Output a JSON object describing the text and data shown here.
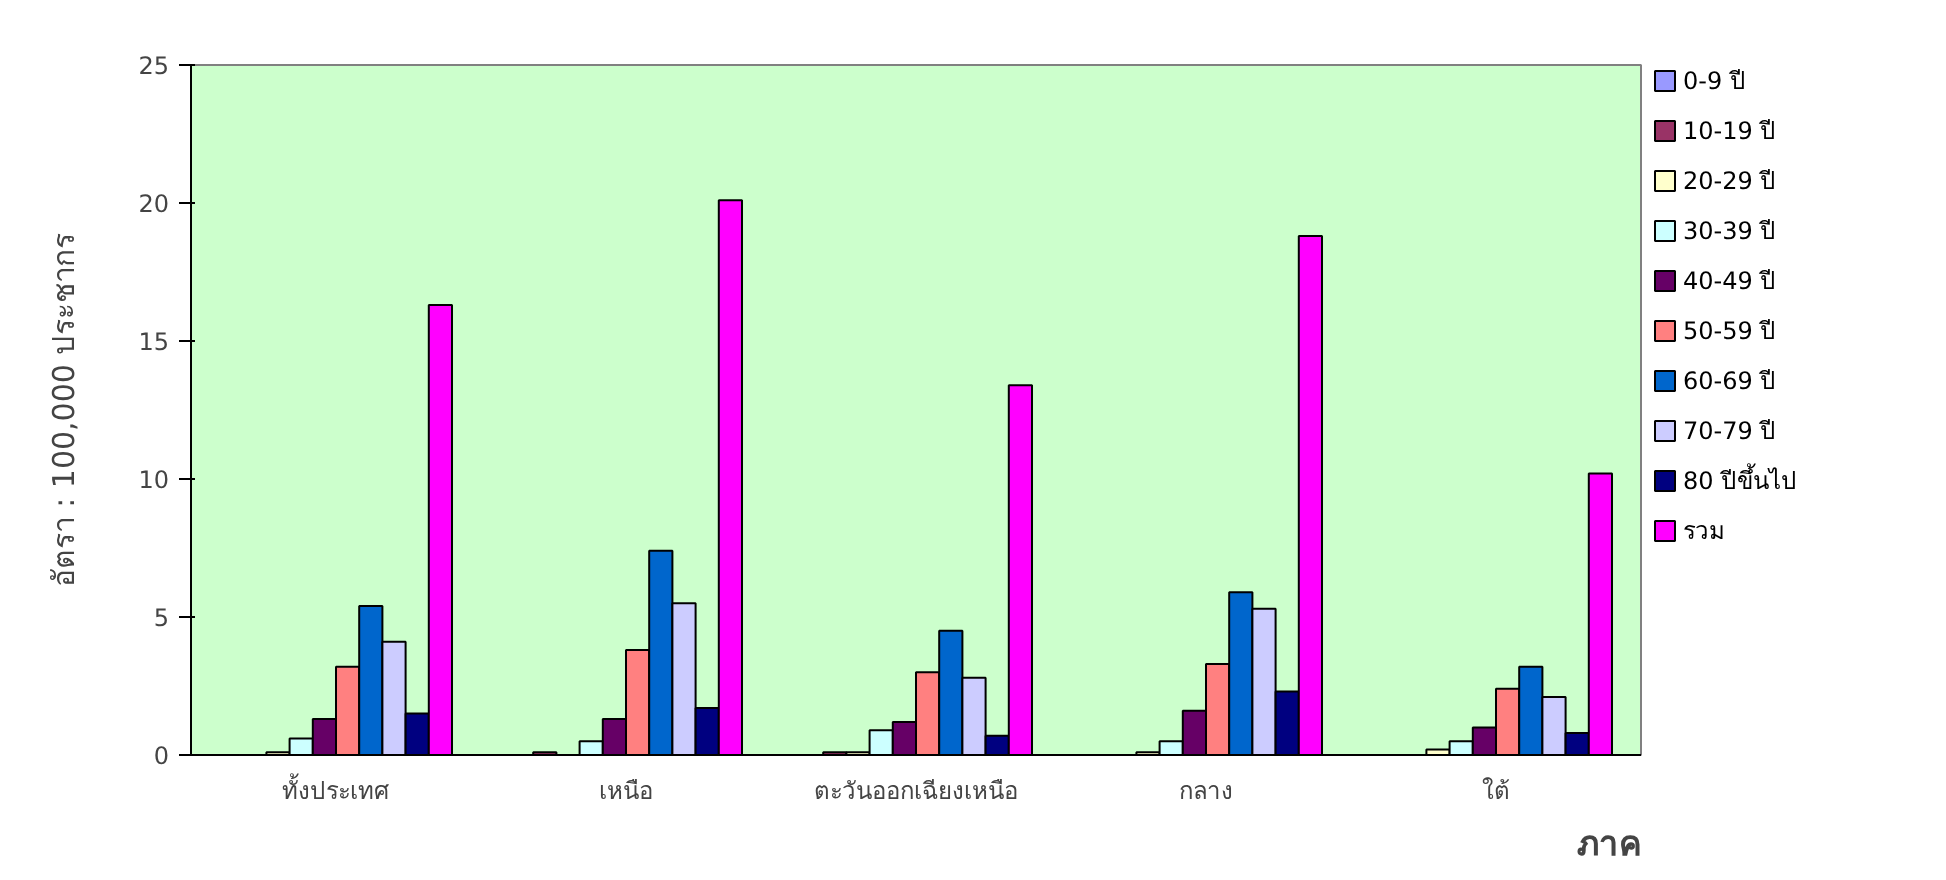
{
  "chart_data": {
    "type": "bar",
    "xlabel": "ภาค",
    "ylabel": "อัตรา : 100,000 ประชากร",
    "categories": [
      "ทั้งประเทศ",
      "เหนือ",
      "ตะวันออกเฉียงเหนือ",
      "กลาง",
      "ใต้"
    ],
    "series": [
      {
        "name": "0-9  ปี",
        "color": "#9999ff",
        "values": [
          0,
          0,
          0,
          0,
          0
        ]
      },
      {
        "name": "10-19  ปี",
        "color": "#993366",
        "values": [
          0,
          0.1,
          0.1,
          0,
          0
        ]
      },
      {
        "name": "20-29  ปี",
        "color": "#ffffcc",
        "values": [
          0.1,
          0,
          0.1,
          0.1,
          0.2
        ]
      },
      {
        "name": "30-39  ปี",
        "color": "#ccffff",
        "values": [
          0.6,
          0.5,
          0.9,
          0.5,
          0.5
        ]
      },
      {
        "name": "40-49  ปี",
        "color": "#660066",
        "values": [
          1.3,
          1.3,
          1.2,
          1.6,
          1.0
        ]
      },
      {
        "name": "50-59  ปี",
        "color": "#ff8080",
        "values": [
          3.2,
          3.8,
          3.0,
          3.3,
          2.4
        ]
      },
      {
        "name": "60-69  ปี",
        "color": "#0066cc",
        "values": [
          5.4,
          7.4,
          4.5,
          5.9,
          3.2
        ]
      },
      {
        "name": "70-79  ปี",
        "color": "#ccccff",
        "values": [
          4.1,
          5.5,
          2.8,
          5.3,
          2.1
        ]
      },
      {
        "name": "80 ปีขึ้นไป",
        "color": "#000080",
        "values": [
          1.5,
          1.7,
          0.7,
          2.3,
          0.8
        ]
      },
      {
        "name": "รวม",
        "color": "#ff00ff",
        "values": [
          16.3,
          20.1,
          13.4,
          18.8,
          10.2
        ]
      }
    ],
    "ylim": [
      0,
      25
    ],
    "yticks": [
      0,
      5,
      10,
      15,
      20,
      25
    ],
    "grid": false,
    "legend": "right"
  }
}
